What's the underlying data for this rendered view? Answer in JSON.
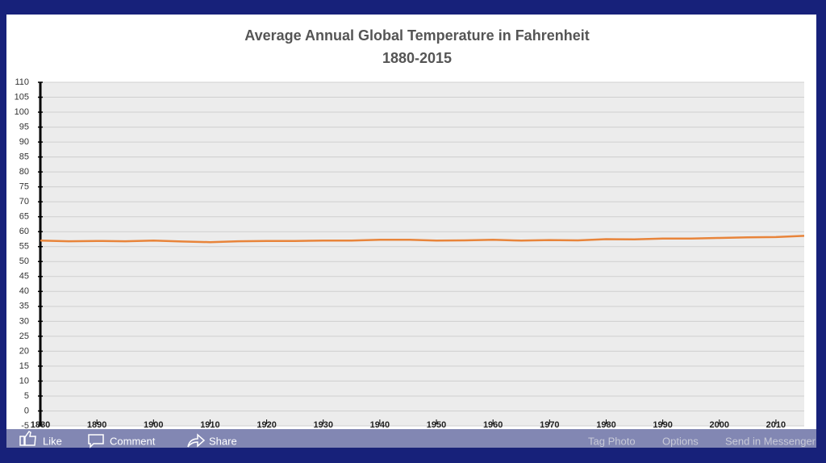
{
  "chart_data": {
    "type": "line",
    "title": "Average Annual Global Temperature in Fahrenheit",
    "subtitle": "1880-2015",
    "x": [
      1880,
      1885,
      1890,
      1895,
      1900,
      1905,
      1910,
      1915,
      1920,
      1925,
      1930,
      1935,
      1940,
      1945,
      1950,
      1955,
      1960,
      1965,
      1970,
      1975,
      1980,
      1985,
      1990,
      1995,
      2000,
      2005,
      2010,
      2015
    ],
    "values": [
      57.0,
      56.8,
      56.9,
      56.8,
      57.0,
      56.7,
      56.5,
      56.8,
      56.9,
      56.9,
      57.0,
      57.0,
      57.3,
      57.3,
      57.0,
      57.1,
      57.3,
      57.0,
      57.2,
      57.1,
      57.5,
      57.4,
      57.7,
      57.7,
      57.9,
      58.1,
      58.2,
      58.6
    ],
    "color": "#e8843a",
    "xlim": [
      1880,
      2015
    ],
    "xticks": [
      1880,
      1890,
      1900,
      1910,
      1920,
      1930,
      1940,
      1950,
      1960,
      1970,
      1980,
      1990,
      2000,
      2010
    ],
    "ylim": [
      -5,
      110
    ],
    "yticks": [
      -5,
      0,
      5,
      10,
      15,
      20,
      25,
      30,
      35,
      40,
      45,
      50,
      55,
      60,
      65,
      70,
      75,
      80,
      85,
      90,
      95,
      100,
      105,
      110
    ],
    "grid": true
  },
  "actions": {
    "like": "Like",
    "comment": "Comment",
    "share": "Share",
    "tag_photo": "Tag Photo",
    "options": "Options",
    "send": "Send in Messenger"
  }
}
